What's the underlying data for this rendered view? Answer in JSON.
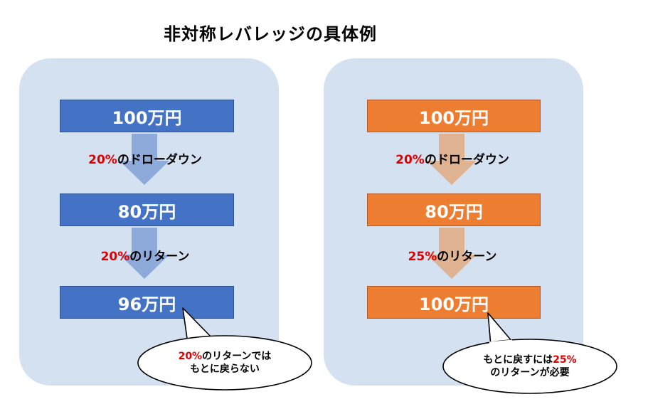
{
  "title": "非対称レバレッジの具体例",
  "colors": {
    "panel_bg": "#d3e1f1",
    "blue_box": "#4472c4",
    "blue_arrow": "#8eaadb",
    "orange_box": "#ed7d31",
    "orange_arrow": "#dfb292",
    "highlight_red": "#e00000"
  },
  "left": {
    "box1": "100万円",
    "step1_pct": "20%",
    "step1_text": "のドローダウン",
    "box2": "80万円",
    "step2_pct": "20%",
    "step2_text": "のリターン",
    "box3": "96万円",
    "callout_line1_pct": "20%",
    "callout_line1_text": "のリターンでは",
    "callout_line2": "もとに戻らない"
  },
  "right": {
    "box1": "100万円",
    "step1_pct": "20%",
    "step1_text": "のドローダウン",
    "box2": "80万円",
    "step2_pct": "25%",
    "step2_text": "のリターン",
    "box3": "100万円",
    "callout_line1_text": "もとに戻すには",
    "callout_line1_pct": "25%",
    "callout_line2": "のリターンが必要"
  }
}
